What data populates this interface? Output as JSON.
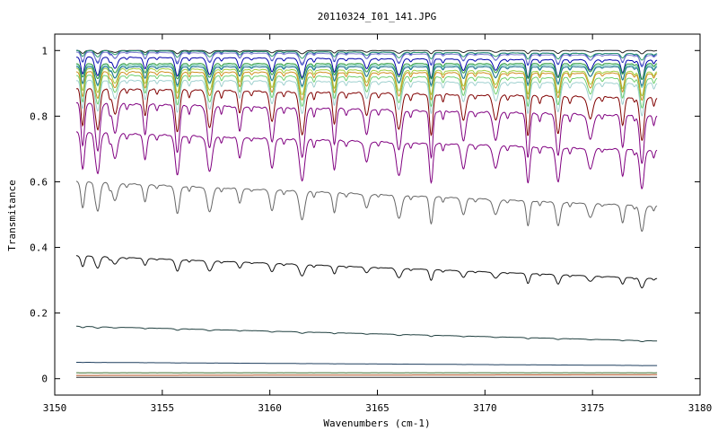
{
  "chart_data": {
    "type": "line",
    "title": "20110324_I01_141.JPG",
    "xlabel": "Wavenumbers (cm-1)",
    "ylabel": "Transmitance",
    "xlim": [
      3150,
      3180
    ],
    "ylim": [
      -0.05,
      1.05
    ],
    "x_data_range": [
      3151,
      3178
    ],
    "xticks": [
      3150,
      3155,
      3160,
      3165,
      3170,
      3175,
      3180
    ],
    "xtick_labels": [
      "3150",
      "3155",
      "3160",
      "3165",
      "3170",
      "3175",
      "3180"
    ],
    "yticks": [
      0,
      0.2,
      0.4,
      0.6,
      0.8,
      1
    ],
    "ytick_labels": [
      "0",
      "0.2",
      "0.4",
      "0.6",
      "0.8",
      "1"
    ],
    "grid": false,
    "legend": "none",
    "absorption_lines": [
      3151.3,
      3152.0,
      3152.8,
      3154.2,
      3155.7,
      3157.2,
      3158.6,
      3160.1,
      3161.5,
      3163.0,
      3164.5,
      3166.0,
      3167.5,
      3169.0,
      3170.5,
      3172.0,
      3173.4,
      3174.9,
      3176.4,
      3177.3
    ],
    "series": [
      {
        "color": "#222222",
        "start": 1.0,
        "end": 1.0,
        "depth": 0.01
      },
      {
        "color": "#1f2fbf",
        "start": 1.0,
        "end": 0.99,
        "depth": 0.04
      },
      {
        "color": "#2f9f6f",
        "start": 1.0,
        "end": 0.99,
        "depth": 0.02
      },
      {
        "color": "#7f7fcf",
        "start": 0.995,
        "end": 0.985,
        "depth": 0.03
      },
      {
        "color": "#0000aa",
        "start": 0.98,
        "end": 0.97,
        "depth": 0.06
      },
      {
        "color": "#2a9a3a",
        "start": 0.96,
        "end": 0.96,
        "depth": 0.05
      },
      {
        "color": "#5fbfaf",
        "start": 0.955,
        "end": 0.955,
        "depth": 0.07
      },
      {
        "color": "#1f6f8f",
        "start": 0.95,
        "end": 0.95,
        "depth": 0.06
      },
      {
        "color": "#9fcf3f",
        "start": 0.945,
        "end": 0.935,
        "depth": 0.08
      },
      {
        "color": "#cf8f1f",
        "start": 0.935,
        "end": 0.93,
        "depth": 0.09
      },
      {
        "color": "#6fcf6f",
        "start": 0.925,
        "end": 0.915,
        "depth": 0.1
      },
      {
        "color": "#9fd0cf",
        "start": 0.91,
        "end": 0.9,
        "depth": 0.11
      },
      {
        "color": "#800000",
        "start": 0.885,
        "end": 0.855,
        "depth": 0.15
      },
      {
        "color": "#800080",
        "start": 0.84,
        "end": 0.8,
        "depth": 0.18
      },
      {
        "color": "#800080",
        "start": 0.75,
        "end": 0.695,
        "depth": 0.17
      },
      {
        "color": "#666666",
        "start": 0.6,
        "end": 0.525,
        "depth": 0.15
      },
      {
        "color": "#111111",
        "start": 0.375,
        "end": 0.305,
        "depth": 0.1
      },
      {
        "color": "#1f3f3f",
        "start": 0.16,
        "end": 0.115,
        "depth": 0.03
      },
      {
        "color": "#1f3f5f",
        "start": 0.05,
        "end": 0.04,
        "depth": 0.01
      },
      {
        "color": "#3f6f2f",
        "start": 0.018,
        "end": 0.018,
        "depth": 0.002
      },
      {
        "color": "#af4f1f",
        "start": 0.01,
        "end": 0.012,
        "depth": 0.002
      },
      {
        "color": "#2f2f2f",
        "start": 0.004,
        "end": 0.004,
        "depth": 0.001
      }
    ]
  }
}
